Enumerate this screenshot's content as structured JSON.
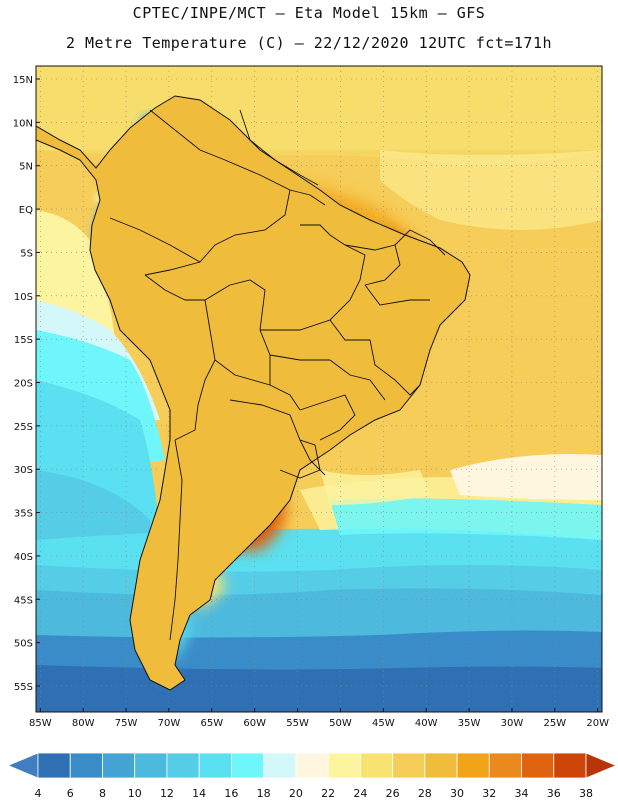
{
  "title": {
    "line1": "CPTEC/INPE/MCT –   Eta Model 15km – GFS",
    "line2": "2 Metre Temperature (C) – 22/12/2020 12UTC fct=171h"
  },
  "axes": {
    "lat_labels": [
      "15N",
      "10N",
      "5N",
      "EQ",
      "5S",
      "10S",
      "15S",
      "20S",
      "25S",
      "30S",
      "35S",
      "40S",
      "45S",
      "50S",
      "55S"
    ],
    "lat_values": [
      15,
      10,
      5,
      0,
      -5,
      -10,
      -15,
      -20,
      -25,
      -30,
      -35,
      -40,
      -45,
      -50,
      -55
    ],
    "lon_labels": [
      "85W",
      "80W",
      "75W",
      "70W",
      "65W",
      "60W",
      "55W",
      "50W",
      "45W",
      "40W",
      "35W",
      "30W",
      "25W",
      "20W"
    ],
    "lon_values": [
      -85,
      -80,
      -75,
      -70,
      -65,
      -60,
      -55,
      -50,
      -45,
      -40,
      -35,
      -30,
      -25,
      -20
    ],
    "lon_range": [
      -85.5,
      -19.5
    ],
    "lat_range": [
      -58,
      16.5
    ]
  },
  "colorbar": {
    "labels": [
      "4",
      "6",
      "8",
      "10",
      "12",
      "14",
      "16",
      "18",
      "20",
      "22",
      "24",
      "26",
      "28",
      "30",
      "32",
      "34",
      "36",
      "38"
    ],
    "colors": [
      "#3f7fc1",
      "#2f6fb3",
      "#3a8cc8",
      "#45a4d3",
      "#4cb9dd",
      "#55cde7",
      "#5ae0f0",
      "#6ef6fa",
      "#d4f7fa",
      "#fff6e0",
      "#fdf4a0",
      "#f8e272",
      "#f6cd58",
      "#f0bc3c",
      "#f2a418",
      "#ea8a1c",
      "#de6410",
      "#cd4508",
      "#b8350a"
    ]
  }
}
